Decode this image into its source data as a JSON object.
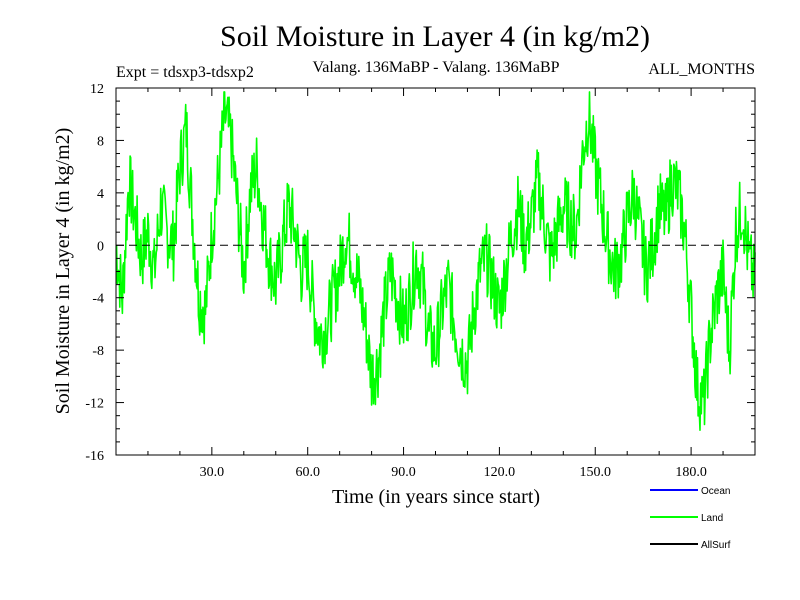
{
  "chart_data": {
    "type": "line",
    "title": "Soil Moisture in Layer 4 (in kg/m2)",
    "subtitle_left": "Expt = tdsxp3-tdsxp2",
    "subtitle_center": "Valang. 136MaBP - Valang. 136MaBP",
    "subtitle_right": "ALL_MONTHS",
    "xlabel": "Time (in years since start)",
    "ylabel": "Soil Moisture in Layer 4 (in kg/m2)",
    "xlim": [
      0,
      200
    ],
    "ylim": [
      -16,
      12
    ],
    "xticks": [
      30,
      60,
      90,
      120,
      150,
      180
    ],
    "xtick_labels": [
      "30.0",
      "60.0",
      "90.0",
      "120.0",
      "150.0",
      "180.0"
    ],
    "yticks": [
      -16,
      -12,
      -8,
      -4,
      0,
      4,
      8,
      12
    ],
    "ytick_labels": [
      "-16",
      "-12",
      "-8",
      "-4",
      "0",
      "4",
      "8",
      "12"
    ],
    "zero_line": true,
    "legend_position": "bottom-right",
    "legend": [
      {
        "name": "Ocean",
        "color": "#0000ff"
      },
      {
        "name": "Land",
        "color": "#00ff00"
      },
      {
        "name": "AllSurf",
        "color": "#000000"
      }
    ],
    "series": [
      {
        "name": "Land",
        "color": "#00ff00",
        "x": [
          0,
          2,
          4,
          6,
          8,
          10,
          12,
          14,
          16,
          18,
          20,
          22,
          24,
          26,
          28,
          30,
          32,
          34,
          36,
          38,
          40,
          42,
          44,
          46,
          48,
          50,
          52,
          54,
          56,
          58,
          60,
          62,
          64,
          66,
          68,
          70,
          72,
          74,
          76,
          78,
          80,
          82,
          84,
          86,
          88,
          90,
          92,
          94,
          96,
          98,
          100,
          102,
          104,
          106,
          108,
          110,
          112,
          114,
          116,
          118,
          120,
          122,
          124,
          126,
          128,
          130,
          132,
          134,
          136,
          138,
          140,
          142,
          144,
          146,
          148,
          150,
          152,
          154,
          156,
          158,
          160,
          162,
          164,
          166,
          168,
          170,
          172,
          174,
          176,
          178,
          180,
          182,
          184,
          186,
          188,
          190,
          192,
          194,
          196,
          198,
          200
        ],
        "y": [
          0,
          -4,
          5,
          2,
          -1,
          1,
          -2,
          3,
          1,
          0,
          6,
          9,
          2,
          -4,
          -5,
          1,
          5,
          10,
          8,
          3,
          -2,
          4,
          6,
          2,
          -1,
          -3,
          0,
          3,
          1,
          -2,
          -1,
          -5,
          -7,
          -6,
          -4,
          -2,
          1,
          -1,
          -3,
          -6,
          -10,
          -9,
          -5,
          -2,
          -4,
          -6,
          -4,
          -1,
          -3,
          -7,
          -8,
          -5,
          -3,
          -6,
          -8,
          -9,
          -5,
          -2,
          -1,
          -3,
          -5,
          -2,
          1,
          3,
          0,
          2,
          5,
          2,
          -1,
          1,
          3,
          2,
          1,
          7,
          10,
          6,
          3,
          0,
          -2,
          -1,
          2,
          4,
          1,
          -2,
          0,
          3,
          2,
          5,
          4,
          1,
          -5,
          -11,
          -12,
          -7,
          -4,
          -2,
          -8,
          1,
          3,
          -1,
          -3
        ]
      }
    ]
  }
}
